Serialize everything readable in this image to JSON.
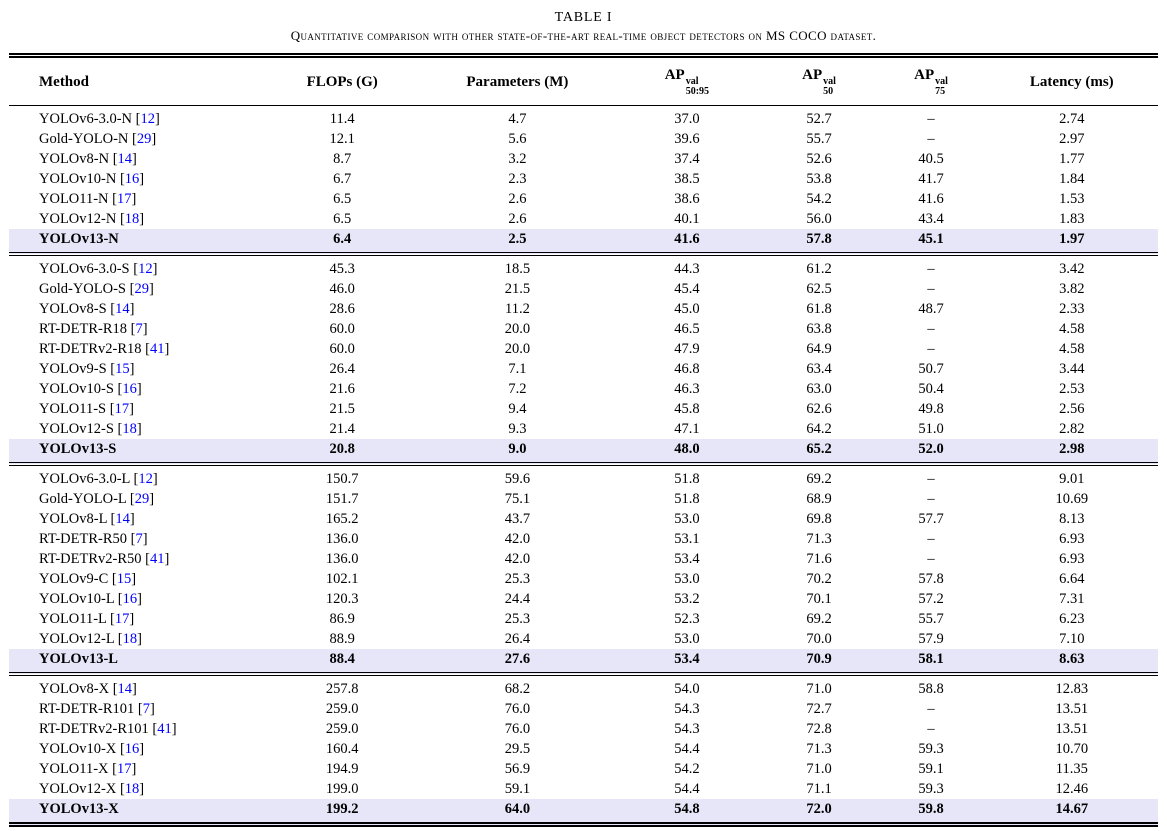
{
  "table": {
    "label": "TABLE I",
    "caption": "Quantitative comparison with other state-of-the-art real-time object detectors on MS COCO dataset.",
    "highlight_color": "#e6e6f8",
    "citation_color": "#0000ff",
    "columns": [
      {
        "label": "Method"
      },
      {
        "label": "FLOPs (G)"
      },
      {
        "label": "Parameters (M)"
      },
      {
        "base": "AP",
        "sup": "val",
        "sub": "50:95"
      },
      {
        "base": "AP",
        "sup": "val",
        "sub": "50"
      },
      {
        "base": "AP",
        "sup": "val",
        "sub": "75"
      },
      {
        "label": "Latency (ms)"
      }
    ],
    "groups": [
      {
        "name": "nano-models",
        "rows": [
          {
            "method": "YOLOv6-3.0-N",
            "cite": "12",
            "flops": "11.4",
            "params": "4.7",
            "ap5095": "37.0",
            "ap50": "52.7",
            "ap75": "–",
            "latency": "2.74",
            "highlight": false
          },
          {
            "method": "Gold-YOLO-N",
            "cite": "29",
            "flops": "12.1",
            "params": "5.6",
            "ap5095": "39.6",
            "ap50": "55.7",
            "ap75": "–",
            "latency": "2.97",
            "highlight": false
          },
          {
            "method": "YOLOv8-N",
            "cite": "14",
            "flops": "8.7",
            "params": "3.2",
            "ap5095": "37.4",
            "ap50": "52.6",
            "ap75": "40.5",
            "latency": "1.77",
            "highlight": false
          },
          {
            "method": "YOLOv10-N",
            "cite": "16",
            "flops": "6.7",
            "params": "2.3",
            "ap5095": "38.5",
            "ap50": "53.8",
            "ap75": "41.7",
            "latency": "1.84",
            "highlight": false
          },
          {
            "method": "YOLO11-N",
            "cite": "17",
            "flops": "6.5",
            "params": "2.6",
            "ap5095": "38.6",
            "ap50": "54.2",
            "ap75": "41.6",
            "latency": "1.53",
            "highlight": false
          },
          {
            "method": "YOLOv12-N",
            "cite": "18",
            "flops": "6.5",
            "params": "2.6",
            "ap5095": "40.1",
            "ap50": "56.0",
            "ap75": "43.4",
            "latency": "1.83",
            "highlight": false
          },
          {
            "method": "YOLOv13-N",
            "cite": "",
            "flops": "6.4",
            "params": "2.5",
            "ap5095": "41.6",
            "ap50": "57.8",
            "ap75": "45.1",
            "latency": "1.97",
            "highlight": true
          }
        ]
      },
      {
        "name": "small-models",
        "rows": [
          {
            "method": "YOLOv6-3.0-S",
            "cite": "12",
            "flops": "45.3",
            "params": "18.5",
            "ap5095": "44.3",
            "ap50": "61.2",
            "ap75": "–",
            "latency": "3.42",
            "highlight": false
          },
          {
            "method": "Gold-YOLO-S",
            "cite": "29",
            "flops": "46.0",
            "params": "21.5",
            "ap5095": "45.4",
            "ap50": "62.5",
            "ap75": "–",
            "latency": "3.82",
            "highlight": false
          },
          {
            "method": "YOLOv8-S",
            "cite": "14",
            "flops": "28.6",
            "params": "11.2",
            "ap5095": "45.0",
            "ap50": "61.8",
            "ap75": "48.7",
            "latency": "2.33",
            "highlight": false
          },
          {
            "method": "RT-DETR-R18",
            "cite": "7",
            "flops": "60.0",
            "params": "20.0",
            "ap5095": "46.5",
            "ap50": "63.8",
            "ap75": "–",
            "latency": "4.58",
            "highlight": false
          },
          {
            "method": "RT-DETRv2-R18",
            "cite": "41",
            "flops": "60.0",
            "params": "20.0",
            "ap5095": "47.9",
            "ap50": "64.9",
            "ap75": "–",
            "latency": "4.58",
            "highlight": false
          },
          {
            "method": "YOLOv9-S",
            "cite": "15",
            "flops": "26.4",
            "params": "7.1",
            "ap5095": "46.8",
            "ap50": "63.4",
            "ap75": "50.7",
            "latency": "3.44",
            "highlight": false
          },
          {
            "method": "YOLOv10-S",
            "cite": "16",
            "flops": "21.6",
            "params": "7.2",
            "ap5095": "46.3",
            "ap50": "63.0",
            "ap75": "50.4",
            "latency": "2.53",
            "highlight": false
          },
          {
            "method": "YOLO11-S",
            "cite": "17",
            "flops": "21.5",
            "params": "9.4",
            "ap5095": "45.8",
            "ap50": "62.6",
            "ap75": "49.8",
            "latency": "2.56",
            "highlight": false
          },
          {
            "method": "YOLOv12-S",
            "cite": "18",
            "flops": "21.4",
            "params": "9.3",
            "ap5095": "47.1",
            "ap50": "64.2",
            "ap75": "51.0",
            "latency": "2.82",
            "highlight": false
          },
          {
            "method": "YOLOv13-S",
            "cite": "",
            "flops": "20.8",
            "params": "9.0",
            "ap5095": "48.0",
            "ap50": "65.2",
            "ap75": "52.0",
            "latency": "2.98",
            "highlight": true
          }
        ]
      },
      {
        "name": "large-models",
        "rows": [
          {
            "method": "YOLOv6-3.0-L",
            "cite": "12",
            "flops": "150.7",
            "params": "59.6",
            "ap5095": "51.8",
            "ap50": "69.2",
            "ap75": "–",
            "latency": "9.01",
            "highlight": false
          },
          {
            "method": "Gold-YOLO-L",
            "cite": "29",
            "flops": "151.7",
            "params": "75.1",
            "ap5095": "51.8",
            "ap50": "68.9",
            "ap75": "–",
            "latency": "10.69",
            "highlight": false
          },
          {
            "method": "YOLOv8-L",
            "cite": "14",
            "flops": "165.2",
            "params": "43.7",
            "ap5095": "53.0",
            "ap50": "69.8",
            "ap75": "57.7",
            "latency": "8.13",
            "highlight": false
          },
          {
            "method": "RT-DETR-R50",
            "cite": "7",
            "flops": "136.0",
            "params": "42.0",
            "ap5095": "53.1",
            "ap50": "71.3",
            "ap75": "–",
            "latency": "6.93",
            "highlight": false
          },
          {
            "method": "RT-DETRv2-R50",
            "cite": "41",
            "flops": "136.0",
            "params": "42.0",
            "ap5095": "53.4",
            "ap50": "71.6",
            "ap75": "–",
            "latency": "6.93",
            "highlight": false
          },
          {
            "method": "YOLOv9-C",
            "cite": "15",
            "flops": "102.1",
            "params": "25.3",
            "ap5095": "53.0",
            "ap50": "70.2",
            "ap75": "57.8",
            "latency": "6.64",
            "highlight": false
          },
          {
            "method": "YOLOv10-L",
            "cite": "16",
            "flops": "120.3",
            "params": "24.4",
            "ap5095": "53.2",
            "ap50": "70.1",
            "ap75": "57.2",
            "latency": "7.31",
            "highlight": false
          },
          {
            "method": "YOLO11-L",
            "cite": "17",
            "flops": "86.9",
            "params": "25.3",
            "ap5095": "52.3",
            "ap50": "69.2",
            "ap75": "55.7",
            "latency": "6.23",
            "highlight": false
          },
          {
            "method": "YOLOv12-L",
            "cite": "18",
            "flops": "88.9",
            "params": "26.4",
            "ap5095": "53.0",
            "ap50": "70.0",
            "ap75": "57.9",
            "latency": "7.10",
            "highlight": false
          },
          {
            "method": "YOLOv13-L",
            "cite": "",
            "flops": "88.4",
            "params": "27.6",
            "ap5095": "53.4",
            "ap50": "70.9",
            "ap75": "58.1",
            "latency": "8.63",
            "highlight": true
          }
        ]
      },
      {
        "name": "xlarge-models",
        "rows": [
          {
            "method": "YOLOv8-X",
            "cite": "14",
            "flops": "257.8",
            "params": "68.2",
            "ap5095": "54.0",
            "ap50": "71.0",
            "ap75": "58.8",
            "latency": "12.83",
            "highlight": false
          },
          {
            "method": "RT-DETR-R101",
            "cite": "7",
            "flops": "259.0",
            "params": "76.0",
            "ap5095": "54.3",
            "ap50": "72.7",
            "ap75": "–",
            "latency": "13.51",
            "highlight": false
          },
          {
            "method": "RT-DETRv2-R101",
            "cite": "41",
            "flops": "259.0",
            "params": "76.0",
            "ap5095": "54.3",
            "ap50": "72.8",
            "ap75": "–",
            "latency": "13.51",
            "highlight": false
          },
          {
            "method": "YOLOv10-X",
            "cite": "16",
            "flops": "160.4",
            "params": "29.5",
            "ap5095": "54.4",
            "ap50": "71.3",
            "ap75": "59.3",
            "latency": "10.70",
            "highlight": false
          },
          {
            "method": "YOLO11-X",
            "cite": "17",
            "flops": "194.9",
            "params": "56.9",
            "ap5095": "54.2",
            "ap50": "71.0",
            "ap75": "59.1",
            "latency": "11.35",
            "highlight": false
          },
          {
            "method": "YOLOv12-X",
            "cite": "18",
            "flops": "199.0",
            "params": "59.1",
            "ap5095": "54.4",
            "ap50": "71.1",
            "ap75": "59.3",
            "latency": "12.46",
            "highlight": false
          },
          {
            "method": "YOLOv13-X",
            "cite": "",
            "flops": "199.2",
            "params": "64.0",
            "ap5095": "54.8",
            "ap50": "72.0",
            "ap75": "59.8",
            "latency": "14.67",
            "highlight": true
          }
        ]
      }
    ]
  }
}
